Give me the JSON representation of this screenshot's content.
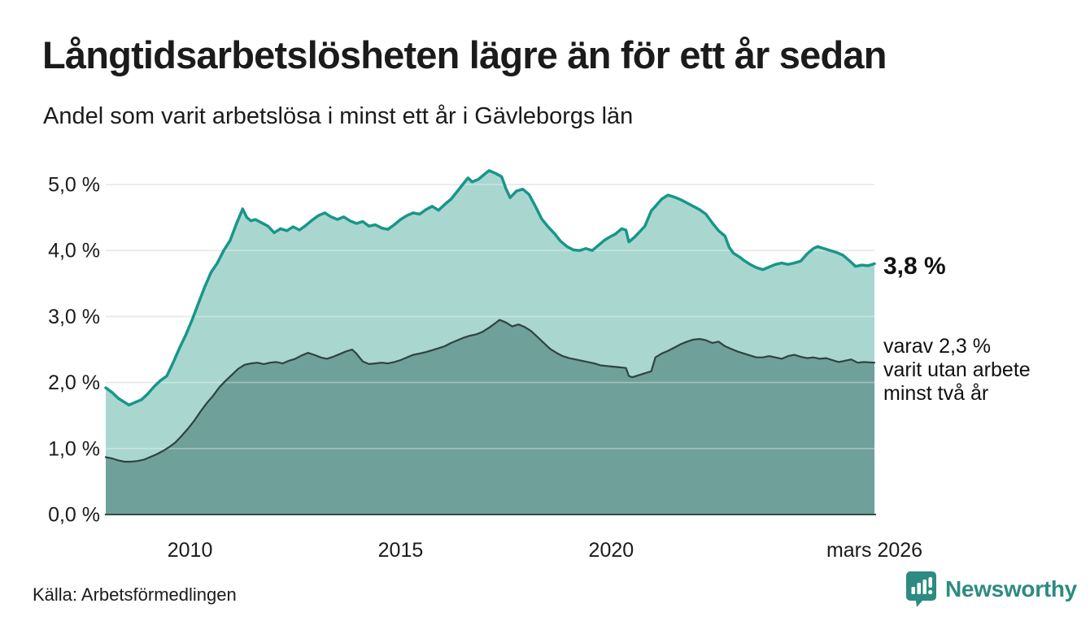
{
  "header": {
    "title": "Långtidsarbetslösheten lägre än för ett år sedan",
    "subtitle": "Andel som varit arbetslösa i minst ett år i Gävleborgs län"
  },
  "chart_data": {
    "type": "area",
    "title": "Långtidsarbetslösheten lägre än för ett år sedan",
    "subtitle": "Andel som varit arbetslösa i minst ett år i Gävleborgs län",
    "xlabel": "",
    "ylabel": "",
    "xlim": [
      2008.0,
      2026.25
    ],
    "ylim": [
      0,
      5.0
    ],
    "grid": true,
    "legend_position": "none",
    "x_ticks": [
      {
        "year": 2010,
        "label": "2010"
      },
      {
        "year": 2015,
        "label": "2015"
      },
      {
        "year": 2020,
        "label": "2020"
      },
      {
        "year": 2026.25,
        "label": "mars 2026"
      }
    ],
    "y_ticks": [
      {
        "value": 0,
        "label": "0,0 %"
      },
      {
        "value": 1,
        "label": "1,0 %"
      },
      {
        "value": 2,
        "label": "2,0 %"
      },
      {
        "value": 3,
        "label": "3,0 %"
      },
      {
        "value": 4,
        "label": "4,0 %"
      },
      {
        "value": 5,
        "label": "5,0 %"
      }
    ],
    "series": [
      {
        "name": "Andel som varit arbetslösa minst ett år",
        "latest_value": "3,8 %",
        "line_color": "#18968a",
        "fill_color": "#a9d7d0",
        "line_width": 3.5,
        "points": [
          [
            2008.0,
            1.92
          ],
          [
            2008.15,
            1.85
          ],
          [
            2008.3,
            1.76
          ],
          [
            2008.45,
            1.7
          ],
          [
            2008.55,
            1.66
          ],
          [
            2008.7,
            1.7
          ],
          [
            2008.85,
            1.74
          ],
          [
            2009.0,
            1.83
          ],
          [
            2009.15,
            1.94
          ],
          [
            2009.3,
            2.03
          ],
          [
            2009.45,
            2.1
          ],
          [
            2009.6,
            2.3
          ],
          [
            2009.75,
            2.52
          ],
          [
            2009.9,
            2.72
          ],
          [
            2010.05,
            2.95
          ],
          [
            2010.2,
            3.2
          ],
          [
            2010.35,
            3.45
          ],
          [
            2010.5,
            3.67
          ],
          [
            2010.65,
            3.81
          ],
          [
            2010.8,
            4.0
          ],
          [
            2010.95,
            4.15
          ],
          [
            2011.1,
            4.4
          ],
          [
            2011.25,
            4.63
          ],
          [
            2011.35,
            4.5
          ],
          [
            2011.45,
            4.45
          ],
          [
            2011.55,
            4.47
          ],
          [
            2011.7,
            4.42
          ],
          [
            2011.85,
            4.37
          ],
          [
            2012.0,
            4.27
          ],
          [
            2012.15,
            4.33
          ],
          [
            2012.3,
            4.3
          ],
          [
            2012.45,
            4.36
          ],
          [
            2012.6,
            4.31
          ],
          [
            2012.75,
            4.38
          ],
          [
            2012.9,
            4.46
          ],
          [
            2013.05,
            4.53
          ],
          [
            2013.2,
            4.57
          ],
          [
            2013.35,
            4.51
          ],
          [
            2013.5,
            4.47
          ],
          [
            2013.65,
            4.51
          ],
          [
            2013.8,
            4.45
          ],
          [
            2013.95,
            4.41
          ],
          [
            2014.1,
            4.44
          ],
          [
            2014.25,
            4.37
          ],
          [
            2014.4,
            4.39
          ],
          [
            2014.55,
            4.34
          ],
          [
            2014.7,
            4.32
          ],
          [
            2014.85,
            4.39
          ],
          [
            2015.0,
            4.47
          ],
          [
            2015.15,
            4.53
          ],
          [
            2015.3,
            4.57
          ],
          [
            2015.45,
            4.55
          ],
          [
            2015.6,
            4.62
          ],
          [
            2015.75,
            4.67
          ],
          [
            2015.9,
            4.61
          ],
          [
            2016.05,
            4.7
          ],
          [
            2016.2,
            4.78
          ],
          [
            2016.35,
            4.9
          ],
          [
            2016.5,
            5.02
          ],
          [
            2016.6,
            5.1
          ],
          [
            2016.7,
            5.04
          ],
          [
            2016.85,
            5.08
          ],
          [
            2017.0,
            5.16
          ],
          [
            2017.1,
            5.21
          ],
          [
            2017.25,
            5.17
          ],
          [
            2017.4,
            5.12
          ],
          [
            2017.5,
            4.94
          ],
          [
            2017.6,
            4.8
          ],
          [
            2017.75,
            4.9
          ],
          [
            2017.9,
            4.93
          ],
          [
            2018.05,
            4.85
          ],
          [
            2018.2,
            4.67
          ],
          [
            2018.35,
            4.48
          ],
          [
            2018.5,
            4.36
          ],
          [
            2018.65,
            4.26
          ],
          [
            2018.8,
            4.14
          ],
          [
            2018.95,
            4.06
          ],
          [
            2019.1,
            4.01
          ],
          [
            2019.25,
            4.0
          ],
          [
            2019.4,
            4.03
          ],
          [
            2019.55,
            4.0
          ],
          [
            2019.7,
            4.08
          ],
          [
            2019.85,
            4.16
          ],
          [
            2019.95,
            4.2
          ],
          [
            2020.1,
            4.25
          ],
          [
            2020.25,
            4.33
          ],
          [
            2020.35,
            4.31
          ],
          [
            2020.42,
            4.13
          ],
          [
            2020.55,
            4.2
          ],
          [
            2020.7,
            4.3
          ],
          [
            2020.8,
            4.37
          ],
          [
            2020.95,
            4.6
          ],
          [
            2021.05,
            4.67
          ],
          [
            2021.2,
            4.78
          ],
          [
            2021.35,
            4.84
          ],
          [
            2021.5,
            4.81
          ],
          [
            2021.65,
            4.77
          ],
          [
            2021.8,
            4.72
          ],
          [
            2021.95,
            4.67
          ],
          [
            2022.1,
            4.62
          ],
          [
            2022.25,
            4.55
          ],
          [
            2022.4,
            4.42
          ],
          [
            2022.55,
            4.3
          ],
          [
            2022.7,
            4.22
          ],
          [
            2022.8,
            4.05
          ],
          [
            2022.9,
            3.96
          ],
          [
            2023.05,
            3.9
          ],
          [
            2023.15,
            3.85
          ],
          [
            2023.3,
            3.79
          ],
          [
            2023.45,
            3.74
          ],
          [
            2023.6,
            3.71
          ],
          [
            2023.75,
            3.75
          ],
          [
            2023.9,
            3.79
          ],
          [
            2024.05,
            3.81
          ],
          [
            2024.2,
            3.79
          ],
          [
            2024.35,
            3.81
          ],
          [
            2024.5,
            3.84
          ],
          [
            2024.65,
            3.95
          ],
          [
            2024.8,
            4.03
          ],
          [
            2024.9,
            4.06
          ],
          [
            2025.05,
            4.03
          ],
          [
            2025.2,
            4.0
          ],
          [
            2025.35,
            3.97
          ],
          [
            2025.5,
            3.93
          ],
          [
            2025.65,
            3.85
          ],
          [
            2025.8,
            3.76
          ],
          [
            2025.95,
            3.78
          ],
          [
            2026.1,
            3.77
          ],
          [
            2026.25,
            3.8
          ]
        ]
      },
      {
        "name": "Andel som varit utan arbete minst två år",
        "latest_value": "2,3 %",
        "line_color": "#2f443f",
        "fill_color": "#70a09a",
        "line_width": 2.2,
        "points": [
          [
            2008.0,
            0.87
          ],
          [
            2008.15,
            0.85
          ],
          [
            2008.3,
            0.82
          ],
          [
            2008.45,
            0.8
          ],
          [
            2008.6,
            0.8
          ],
          [
            2008.75,
            0.81
          ],
          [
            2008.9,
            0.83
          ],
          [
            2009.05,
            0.87
          ],
          [
            2009.2,
            0.91
          ],
          [
            2009.35,
            0.96
          ],
          [
            2009.5,
            1.02
          ],
          [
            2009.65,
            1.09
          ],
          [
            2009.8,
            1.19
          ],
          [
            2009.95,
            1.3
          ],
          [
            2010.1,
            1.42
          ],
          [
            2010.25,
            1.56
          ],
          [
            2010.4,
            1.69
          ],
          [
            2010.55,
            1.8
          ],
          [
            2010.7,
            1.93
          ],
          [
            2010.85,
            2.03
          ],
          [
            2011.0,
            2.12
          ],
          [
            2011.15,
            2.21
          ],
          [
            2011.3,
            2.27
          ],
          [
            2011.45,
            2.29
          ],
          [
            2011.6,
            2.3
          ],
          [
            2011.75,
            2.28
          ],
          [
            2011.9,
            2.3
          ],
          [
            2012.05,
            2.31
          ],
          [
            2012.2,
            2.29
          ],
          [
            2012.35,
            2.33
          ],
          [
            2012.5,
            2.36
          ],
          [
            2012.65,
            2.41
          ],
          [
            2012.8,
            2.45
          ],
          [
            2012.95,
            2.42
          ],
          [
            2013.1,
            2.38
          ],
          [
            2013.25,
            2.36
          ],
          [
            2013.4,
            2.39
          ],
          [
            2013.55,
            2.43
          ],
          [
            2013.7,
            2.47
          ],
          [
            2013.85,
            2.5
          ],
          [
            2013.95,
            2.44
          ],
          [
            2014.1,
            2.32
          ],
          [
            2014.25,
            2.28
          ],
          [
            2014.4,
            2.29
          ],
          [
            2014.55,
            2.3
          ],
          [
            2014.7,
            2.29
          ],
          [
            2014.85,
            2.31
          ],
          [
            2015.0,
            2.34
          ],
          [
            2015.15,
            2.38
          ],
          [
            2015.3,
            2.42
          ],
          [
            2015.45,
            2.44
          ],
          [
            2015.6,
            2.46
          ],
          [
            2015.75,
            2.49
          ],
          [
            2015.9,
            2.52
          ],
          [
            2016.05,
            2.55
          ],
          [
            2016.2,
            2.6
          ],
          [
            2016.35,
            2.64
          ],
          [
            2016.5,
            2.68
          ],
          [
            2016.65,
            2.71
          ],
          [
            2016.8,
            2.73
          ],
          [
            2016.95,
            2.77
          ],
          [
            2017.1,
            2.83
          ],
          [
            2017.25,
            2.9
          ],
          [
            2017.35,
            2.95
          ],
          [
            2017.5,
            2.91
          ],
          [
            2017.65,
            2.85
          ],
          [
            2017.8,
            2.88
          ],
          [
            2017.95,
            2.84
          ],
          [
            2018.1,
            2.78
          ],
          [
            2018.25,
            2.69
          ],
          [
            2018.4,
            2.6
          ],
          [
            2018.55,
            2.51
          ],
          [
            2018.7,
            2.45
          ],
          [
            2018.85,
            2.4
          ],
          [
            2019.0,
            2.37
          ],
          [
            2019.15,
            2.35
          ],
          [
            2019.3,
            2.33
          ],
          [
            2019.45,
            2.31
          ],
          [
            2019.6,
            2.29
          ],
          [
            2019.75,
            2.26
          ],
          [
            2019.9,
            2.25
          ],
          [
            2020.05,
            2.24
          ],
          [
            2020.2,
            2.23
          ],
          [
            2020.35,
            2.22
          ],
          [
            2020.42,
            2.1
          ],
          [
            2020.5,
            2.08
          ],
          [
            2020.65,
            2.11
          ],
          [
            2020.8,
            2.14
          ],
          [
            2020.95,
            2.17
          ],
          [
            2021.05,
            2.38
          ],
          [
            2021.2,
            2.44
          ],
          [
            2021.35,
            2.48
          ],
          [
            2021.5,
            2.53
          ],
          [
            2021.65,
            2.58
          ],
          [
            2021.8,
            2.62
          ],
          [
            2021.95,
            2.65
          ],
          [
            2022.1,
            2.66
          ],
          [
            2022.25,
            2.64
          ],
          [
            2022.4,
            2.6
          ],
          [
            2022.55,
            2.62
          ],
          [
            2022.7,
            2.55
          ],
          [
            2022.85,
            2.51
          ],
          [
            2023.0,
            2.47
          ],
          [
            2023.15,
            2.44
          ],
          [
            2023.3,
            2.41
          ],
          [
            2023.45,
            2.38
          ],
          [
            2023.6,
            2.38
          ],
          [
            2023.75,
            2.4
          ],
          [
            2023.9,
            2.38
          ],
          [
            2024.05,
            2.36
          ],
          [
            2024.2,
            2.4
          ],
          [
            2024.35,
            2.42
          ],
          [
            2024.5,
            2.39
          ],
          [
            2024.65,
            2.37
          ],
          [
            2024.8,
            2.38
          ],
          [
            2024.95,
            2.36
          ],
          [
            2025.1,
            2.37
          ],
          [
            2025.25,
            2.34
          ],
          [
            2025.4,
            2.31
          ],
          [
            2025.55,
            2.33
          ],
          [
            2025.7,
            2.35
          ],
          [
            2025.85,
            2.3
          ],
          [
            2026.0,
            2.31
          ],
          [
            2026.25,
            2.3
          ]
        ]
      }
    ],
    "annotations": {
      "primary": "3,8 %",
      "secondary_lines": [
        "varav 2,3 %",
        "varit utan arbete",
        "minst två år"
      ]
    }
  },
  "footer": {
    "source": "Källa: Arbetsförmedlingen",
    "brand": "Newsworthy"
  },
  "colors": {
    "accent_teal": "#18968a",
    "light_fill": "#a9d7d0",
    "dark_fill": "#70a09a",
    "dark_line": "#2f443f",
    "gridline": "#dcdcdc",
    "axis_line": "#3a4a46",
    "brand_teal": "#2d8b81",
    "text": "#1b1b1b"
  }
}
